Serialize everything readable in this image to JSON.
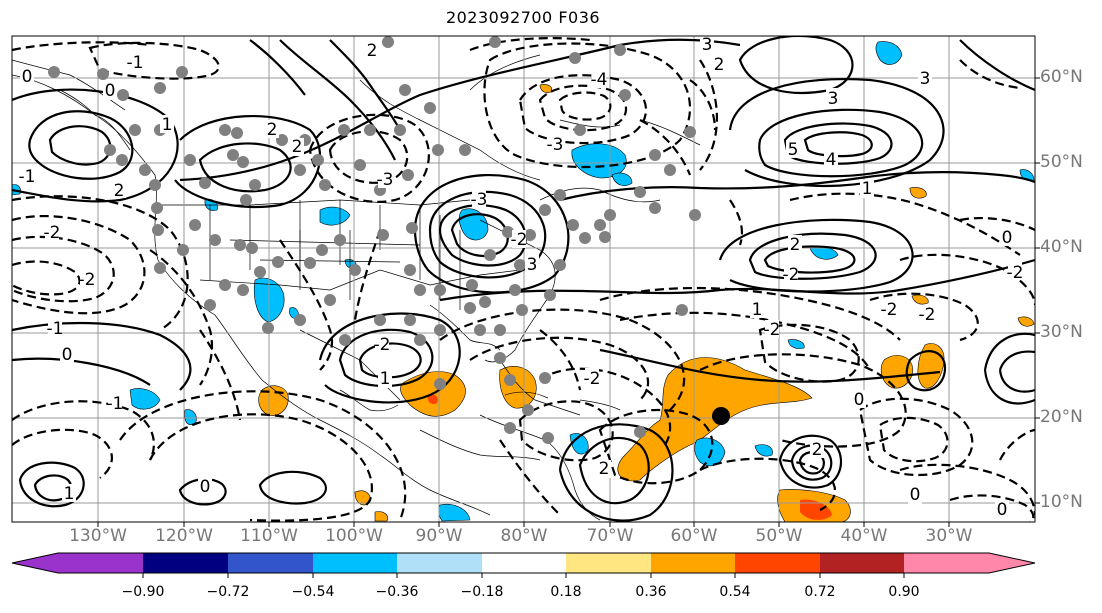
{
  "title": "2023092700 F036",
  "lat_labels": [
    "60°N",
    "50°N",
    "40°N",
    "30°N",
    "20°N",
    "10°N"
  ],
  "lon_labels": [
    "130°W",
    "120°W",
    "110°W",
    "100°W",
    "90°W",
    "80°W",
    "70°W",
    "60°W",
    "50°W",
    "40°W",
    "30°W"
  ],
  "colorbar": {
    "colors": [
      "#9933cc",
      "#000080",
      "#3355cc",
      "#00bfff",
      "#b0e0f8",
      "#ffffff",
      "#ffe680",
      "#ffa500",
      "#ff4500",
      "#b22222",
      "#ff88aa"
    ],
    "ticks": [
      "−0.90",
      "−0.72",
      "−0.54",
      "−0.36",
      "−0.18",
      "0.18",
      "0.36",
      "0.54",
      "0.72",
      "0.90"
    ]
  },
  "contour_labels": [
    "-1",
    "0",
    "0",
    "-2",
    "2",
    "1",
    "2",
    "3",
    "-3",
    "-4",
    "-3",
    "-2",
    "3",
    "2",
    "3",
    "-3",
    "3",
    "2",
    "5",
    "4",
    "1",
    "-1",
    "-2",
    "2",
    "-1",
    "0",
    "2",
    "-2",
    "0",
    "-2",
    "-2",
    "1",
    "2",
    "-2",
    "0",
    "-2",
    "0",
    "0",
    "0",
    "1",
    "1",
    "-1",
    "-2",
    "2",
    "-2"
  ]
}
